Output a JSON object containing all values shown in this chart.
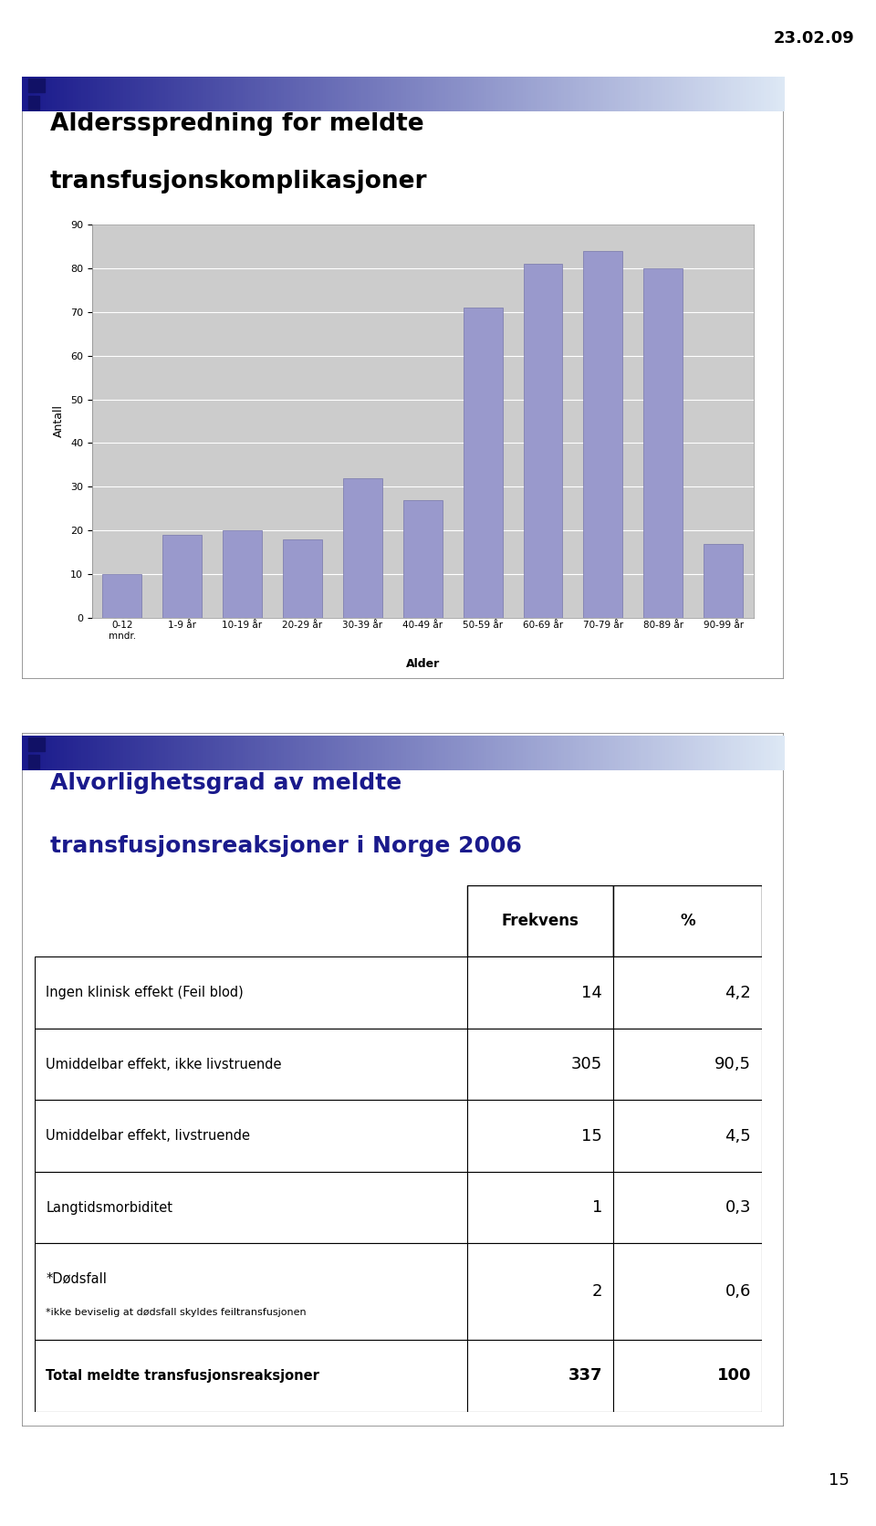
{
  "date_text": "23.02.09",
  "slide1": {
    "title_line1": "Aldersspredning for meldte",
    "title_line2": "transfusjonskomplikasjoner",
    "bar_categories": [
      "0-12\nmndr.",
      "1-9 år",
      "10-19 år",
      "20-29 år",
      "30-39 år",
      "40-49 år",
      "50-59 år",
      "60-69 år",
      "70-79 år",
      "80-89 år",
      "90-99 år"
    ],
    "bar_values": [
      10,
      19,
      20,
      18,
      32,
      27,
      71,
      81,
      84,
      80,
      17
    ],
    "bar_color": "#9999cc",
    "ylabel": "Antall",
    "xlabel": "Alder",
    "ylim": [
      0,
      90
    ],
    "yticks": [
      0,
      10,
      20,
      30,
      40,
      50,
      60,
      70,
      80,
      90
    ],
    "chart_bg": "#cccccc",
    "grid_color": "#ffffff"
  },
  "slide2": {
    "title_line1": "Alvorlighetsgrad av meldte",
    "title_line2": "transfusjonsreaksjoner i Norge 2006",
    "title_color": "#1a1a8c",
    "table_headers": [
      "Frekvens",
      "%"
    ],
    "table_rows": [
      [
        "Ingen klinisk effekt (Feil blod)",
        "14",
        "4,2"
      ],
      [
        "Umiddelbar effekt, ikke livstruende",
        "305",
        "90,5"
      ],
      [
        "Umiddelbar effekt, livstruende",
        "15",
        "4,5"
      ],
      [
        "Langtidsmorbiditet",
        "1",
        "0,3"
      ],
      [
        "*Dødsfall\n*ikke beviselig at dødsfall skyldes feiltransfusjonen",
        "2",
        "0,6"
      ],
      [
        "Total meldte transfusjonsreaksjoner",
        "337",
        "100"
      ]
    ]
  },
  "page_number": "15",
  "header_gradient_left": "#1a1a8c",
  "header_gradient_right": "#dde8f5"
}
